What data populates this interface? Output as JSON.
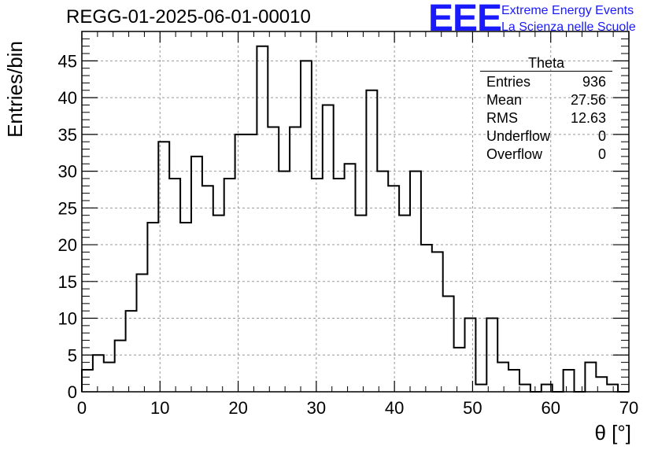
{
  "title": "REGG-01-2025-06-01-00010",
  "logo": {
    "mark": "EEE",
    "line1": "Extreme Energy Events",
    "line2": "La Scienza nelle Scuole",
    "color": "#1a1aff"
  },
  "stats": {
    "name": "Theta",
    "rows": [
      {
        "label": "Entries",
        "value": "936"
      },
      {
        "label": "Mean",
        "value": "27.56"
      },
      {
        "label": "RMS",
        "value": "12.63"
      },
      {
        "label": "Underflow",
        "value": "0"
      },
      {
        "label": "Overflow",
        "value": "0"
      }
    ]
  },
  "chart_data": {
    "type": "bar",
    "style": "step-histogram",
    "title": "REGG-01-2025-06-01-00010",
    "xlabel": "θ [°]",
    "ylabel": "Entries/bin",
    "xlim": [
      0,
      70
    ],
    "ylim": [
      0,
      49
    ],
    "bin_width": 1.4,
    "grid": true,
    "x_ticks": [
      0,
      10,
      20,
      30,
      40,
      50,
      60,
      70
    ],
    "y_ticks": [
      0,
      5,
      10,
      15,
      20,
      25,
      30,
      35,
      40,
      45
    ],
    "bin_edges": [
      0,
      1.4,
      2.8,
      4.2,
      5.6,
      7.0,
      8.4,
      9.8,
      11.2,
      12.6,
      14.0,
      15.4,
      16.8,
      18.2,
      19.6,
      21.0,
      22.4,
      23.8,
      25.2,
      26.6,
      28.0,
      29.4,
      30.8,
      32.2,
      33.6,
      35.0,
      36.4,
      37.8,
      39.2,
      40.6,
      42.0,
      43.4,
      44.8,
      46.2,
      47.6,
      49.0,
      50.4,
      51.8,
      53.2,
      54.6,
      56.0,
      57.4,
      58.8,
      60.2,
      61.6,
      63.0,
      64.4,
      65.8,
      67.2,
      68.6,
      70.0
    ],
    "values": [
      3,
      5,
      4,
      7,
      11,
      16,
      23,
      34,
      29,
      23,
      32,
      28,
      24,
      29,
      35,
      35,
      47,
      36,
      30,
      36,
      45,
      29,
      39,
      29,
      31,
      24,
      41,
      30,
      28,
      24,
      30,
      20,
      19,
      13,
      6,
      10,
      1,
      10,
      4,
      3,
      1,
      0,
      1,
      0,
      3,
      0,
      4,
      2,
      1,
      0
    ]
  }
}
